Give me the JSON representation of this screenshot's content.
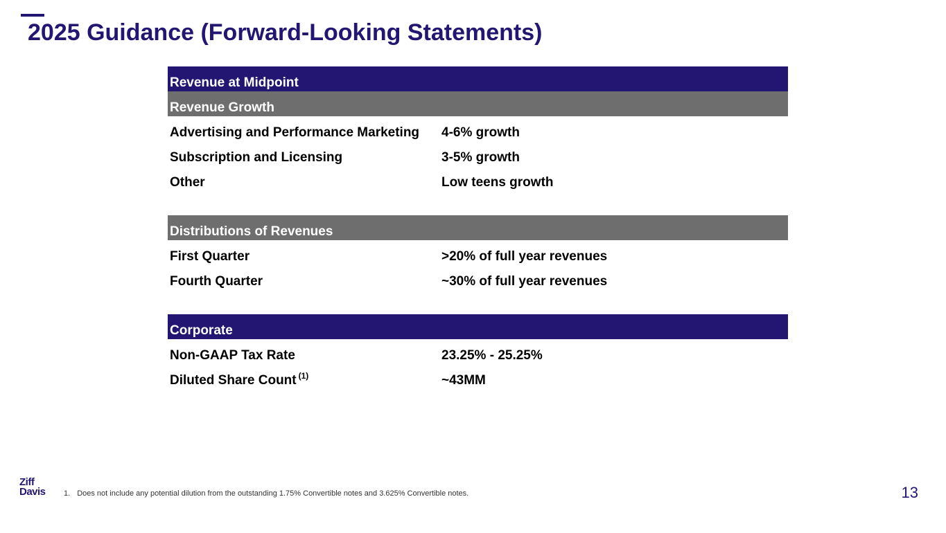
{
  "slide": {
    "title": "2025 Guidance (Forward-Looking Statements)",
    "page_number": "13"
  },
  "table": {
    "header_revenue_midpoint": "Revenue at Midpoint",
    "header_revenue_growth": "Revenue Growth",
    "revenue_growth_rows": [
      {
        "label": "Advertising and Performance Marketing",
        "value": "4-6% growth"
      },
      {
        "label": "Subscription and Licensing",
        "value": "3-5% growth"
      },
      {
        "label": "Other",
        "value": "Low teens growth"
      }
    ],
    "header_distributions": "Distributions of Revenues",
    "distribution_rows": [
      {
        "label": "First Quarter",
        "value": ">20% of full year revenues"
      },
      {
        "label": "Fourth Quarter",
        "value": "~30% of full year revenues"
      }
    ],
    "header_corporate": "Corporate",
    "corporate_rows": [
      {
        "label": "Non-GAAP Tax Rate",
        "value": "23.25% - 25.25%"
      },
      {
        "label": "Diluted Share Count",
        "superscript": "(1)",
        "value": "~43MM"
      }
    ]
  },
  "footnote": {
    "number": "1.",
    "text": "Does not include any potential dilution from the outstanding 1.75% Convertible notes and 3.625% Convertible notes."
  },
  "logo": {
    "line1": "Ziff",
    "line2": "Davis"
  },
  "colors": {
    "navy": "#221672",
    "gray": "#6e6e6e"
  }
}
